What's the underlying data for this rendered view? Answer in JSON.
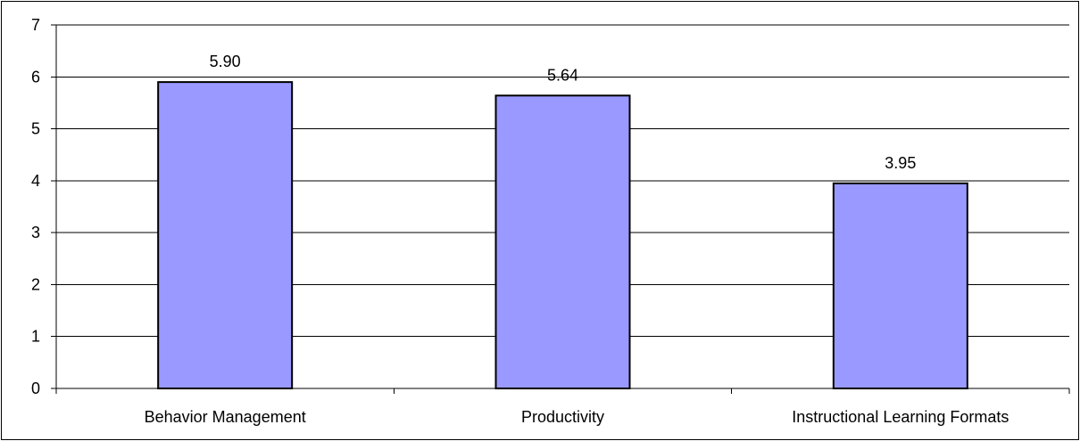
{
  "chart_data": {
    "type": "bar",
    "title": "",
    "xlabel": "",
    "ylabel": "",
    "categories": [
      "Behavior Management",
      "Productivity",
      "Instructional Learning Formats"
    ],
    "values": [
      5.9,
      5.64,
      3.95
    ],
    "value_labels": [
      "5.90",
      "5.64",
      "3.95"
    ],
    "ylim": [
      0,
      7
    ],
    "yticks": [
      0,
      1,
      2,
      3,
      4,
      5,
      6,
      7
    ],
    "ytick_labels": [
      "0",
      "1",
      "2",
      "3",
      "4",
      "5",
      "6",
      "7"
    ],
    "grid": true,
    "legend": "none",
    "colors": {
      "bar_fill": "#9999FF",
      "bar_stroke": "#000000",
      "gridline": "#000000",
      "axis": "#000000",
      "background": "#FFFFFF"
    }
  }
}
